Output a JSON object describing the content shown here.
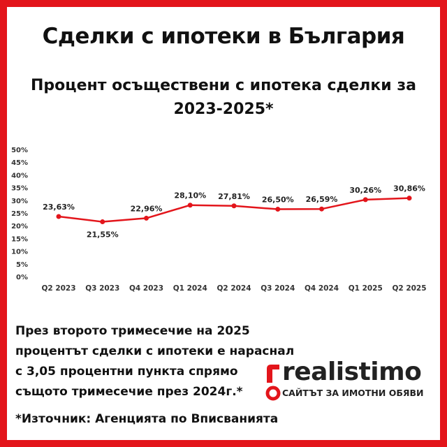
{
  "header": {
    "title": "Сделки с ипотеки в България",
    "subtitle": "Процент осъществени с ипотека сделки за 2023-2025*"
  },
  "chart_data": {
    "type": "line",
    "categories": [
      "Q2 2023",
      "Q3 2023",
      "Q4 2023",
      "Q1 2024",
      "Q2 2024",
      "Q3 2024",
      "Q4 2024",
      "Q1 2025",
      "Q2 2025"
    ],
    "values": [
      23.63,
      21.55,
      22.96,
      28.1,
      27.81,
      26.5,
      26.59,
      30.26,
      30.86
    ],
    "data_labels": [
      "23,63%",
      "21,55%",
      "22,96%",
      "28,10%",
      "27,81%",
      "26,50%",
      "26,59%",
      "30,26%",
      "30,86%"
    ],
    "y_ticks": [
      0,
      5,
      10,
      15,
      20,
      25,
      30,
      35,
      40,
      45,
      50
    ],
    "y_tick_labels": [
      "0%",
      "5%",
      "10%",
      "15%",
      "20%",
      "25%",
      "30%",
      "35%",
      "40%",
      "45%",
      "50%"
    ],
    "ylim": [
      0,
      50
    ],
    "grid": false,
    "line_color": "#e3151b"
  },
  "note": {
    "lines": [
      "През второто тримесечие на 2025",
      "процентът сделки с ипотеки е нараснал",
      "с 3,05 процентни пункта спрямо",
      "същото тримесечие през 2024г.*"
    ]
  },
  "source": "*Източник: Агенцията по Вписванията",
  "logo": {
    "name": "realistimo",
    "tagline": "САЙТЪТ ЗА ИМОТНИ ОБЯВИ",
    "accent": "#e3151b"
  },
  "colors": {
    "frame": "#e3151b",
    "text": "#111111"
  }
}
